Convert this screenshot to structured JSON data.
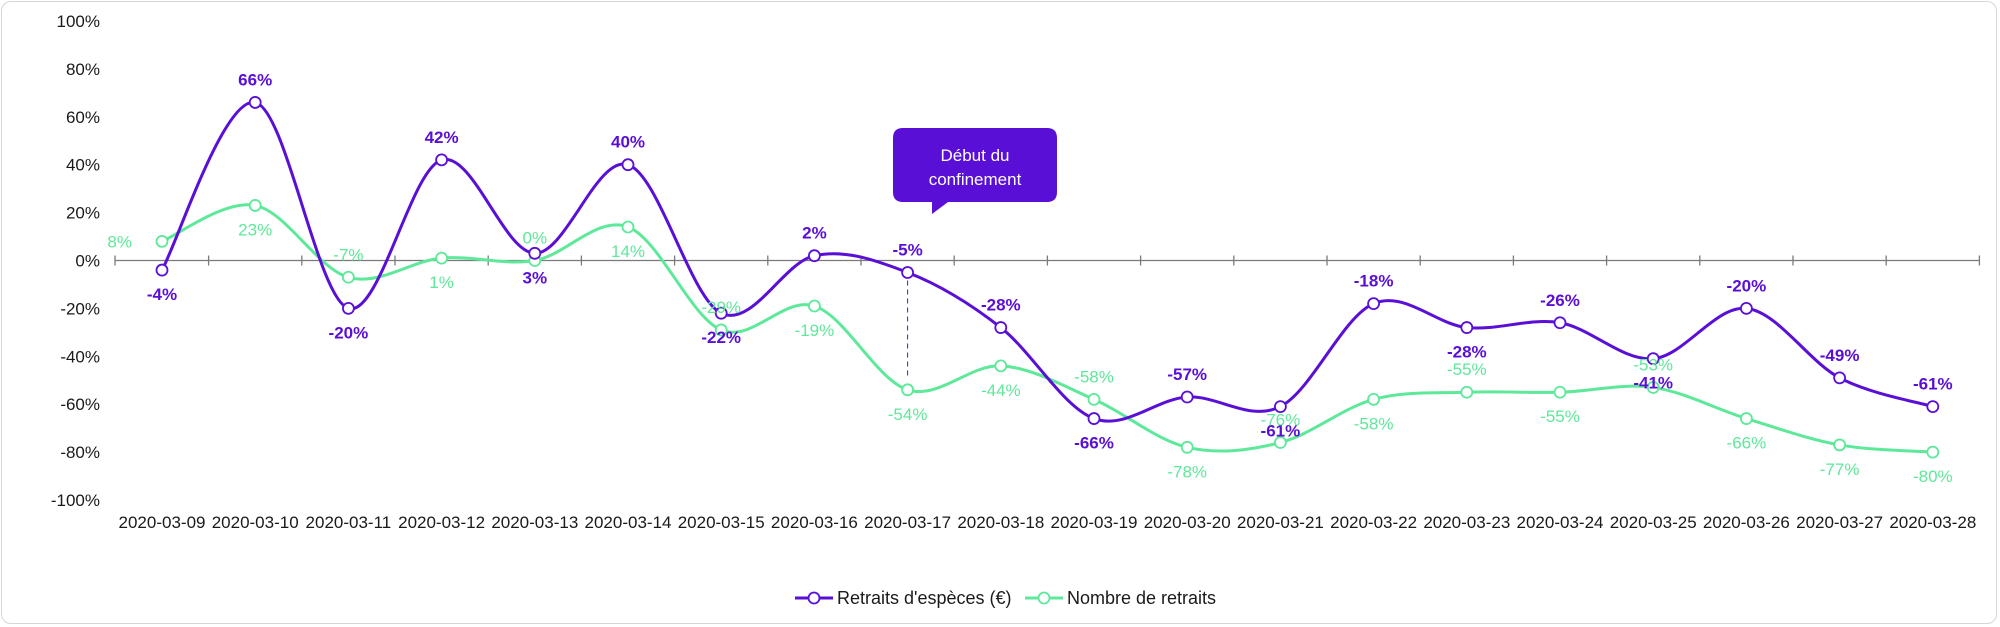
{
  "chart_data": {
    "type": "line",
    "categories": [
      "2020-03-09",
      "2020-03-10",
      "2020-03-11",
      "2020-03-12",
      "2020-03-13",
      "2020-03-14",
      "2020-03-15",
      "2020-03-16",
      "2020-03-17",
      "2020-03-18",
      "2020-03-19",
      "2020-03-20",
      "2020-03-21",
      "2020-03-22",
      "2020-03-23",
      "2020-03-24",
      "2020-03-25",
      "2020-03-26",
      "2020-03-27",
      "2020-03-28"
    ],
    "ylim": [
      -100,
      100
    ],
    "y_ticks": [
      "100%",
      "80%",
      "60%",
      "40%",
      "20%",
      "0%",
      "-20%",
      "-40%",
      "-60%",
      "-80%",
      "-100%"
    ],
    "smooth": true,
    "series": [
      {
        "name": "Retraits d'espèces (€)",
        "color": "#5a0fd6",
        "values": [
          -4,
          66,
          -20,
          42,
          3,
          40,
          -22,
          2,
          -5,
          -28,
          -66,
          -57,
          -61,
          -18,
          -28,
          -26,
          -41,
          -20,
          -49,
          -61
        ],
        "labels": [
          "-4%",
          "66%",
          "-20%",
          "42%",
          "3%",
          "40%",
          "-22%",
          "2%",
          "-5%",
          "-28%",
          "-66%",
          "-57%",
          "-61%",
          "-18%",
          "-28%",
          "-26%",
          "-41%",
          "-20%",
          "-49%",
          "-61%"
        ]
      },
      {
        "name": "Nombre de retraits",
        "color": "#5ee89a",
        "values": [
          8,
          23,
          -7,
          1,
          0,
          14,
          -29,
          -19,
          -54,
          -44,
          -58,
          -78,
          -76,
          -58,
          -55,
          -55,
          -53,
          -66,
          -77,
          -80
        ],
        "labels": [
          "8%",
          "23%",
          "-7%",
          "1%",
          "0%",
          "14%",
          "-29%",
          "-19%",
          "-54%",
          "-44%",
          "-58%",
          "-78%",
          "-76%",
          "-58%",
          "-55%",
          "-55%",
          "-53%",
          "-66%",
          "-77%",
          "-80%"
        ]
      }
    ],
    "annotation": {
      "text_line1": "Début du",
      "text_line2": "confinement",
      "category": "2020-03-17",
      "color": "#5a0fd6"
    },
    "legend_position": "bottom",
    "grid": false
  }
}
